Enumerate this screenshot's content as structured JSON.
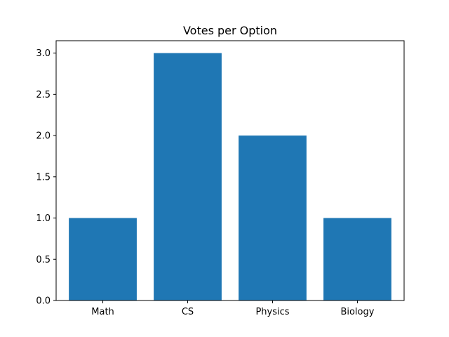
{
  "chart_data": {
    "type": "bar",
    "title": "Votes per Option",
    "xlabel": "",
    "ylabel": "",
    "categories": [
      "Math",
      "CS",
      "Physics",
      "Biology"
    ],
    "values": [
      1,
      3,
      2,
      1
    ],
    "ylim": [
      0,
      3.15
    ],
    "yticks": [
      0,
      0.5,
      1,
      1.5,
      2,
      2.5,
      3
    ],
    "ytick_labels": [
      "0.0",
      "0.5",
      "1.0",
      "1.5",
      "2.0",
      "2.5",
      "3.0"
    ],
    "grid": false,
    "legend": "none",
    "bar_color": "#1f77b4"
  }
}
